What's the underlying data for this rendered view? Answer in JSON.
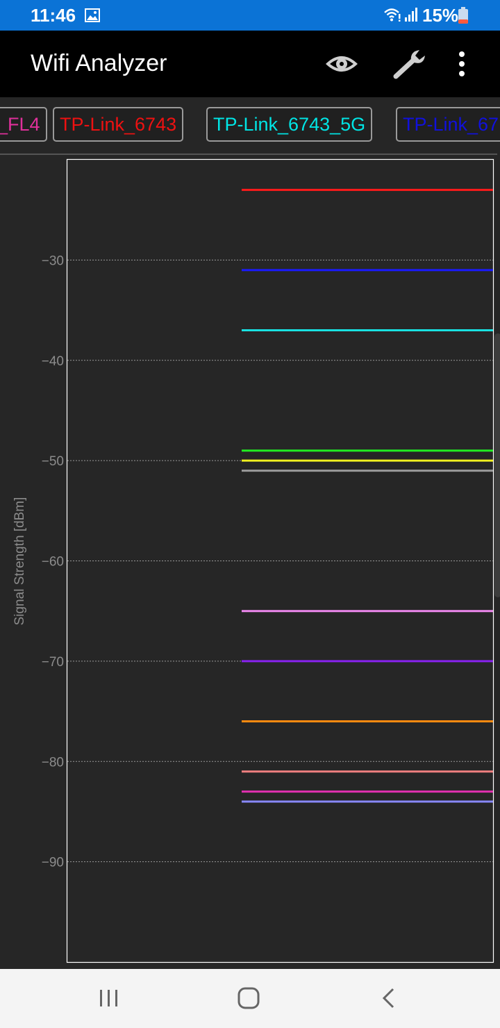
{
  "status_bar": {
    "time": "11:46",
    "battery": "15%",
    "icons": [
      "gallery-icon",
      "wifi-icon",
      "signal-icon",
      "battery-icon"
    ]
  },
  "app_bar": {
    "title": "Wifi Analyzer",
    "icons": [
      "eye-icon",
      "wrench-icon",
      "more-vert-icon"
    ]
  },
  "chips": [
    {
      "label": "_FL4",
      "color": "#e0309b"
    },
    {
      "label": "TP-Link_6743",
      "color": "#ee1111"
    },
    {
      "label": "TP-Link_6743_5G",
      "color": "#00e5e5"
    },
    {
      "label": "TP-Link_67",
      "color": "#1111dd"
    }
  ],
  "chart_data": {
    "type": "line",
    "title": "",
    "ylabel": "Signal Strength [dBm]",
    "xlabel": "",
    "ylim": [
      -100,
      -20
    ],
    "yticks": [
      -30,
      -40,
      -50,
      -60,
      -70,
      -80,
      -90
    ],
    "grid": true,
    "series": [
      {
        "value": -23,
        "color": "#ff1a1a"
      },
      {
        "value": -31,
        "color": "#1a1aff"
      },
      {
        "value": -37,
        "color": "#19e0e0"
      },
      {
        "value": -49,
        "color": "#22ee22"
      },
      {
        "value": -50,
        "color": "#f0f020"
      },
      {
        "value": -51,
        "color": "#9a9a9a"
      },
      {
        "value": -65,
        "color": "#ee88ee"
      },
      {
        "value": -70,
        "color": "#8822ee"
      },
      {
        "value": -76,
        "color": "#ff8a10"
      },
      {
        "value": -81,
        "color": "#f08080"
      },
      {
        "value": -83,
        "color": "#e030b0"
      },
      {
        "value": -84,
        "color": "#8888ff"
      }
    ]
  },
  "nav_bar": {
    "icons": [
      "recents-icon",
      "home-icon",
      "back-icon"
    ]
  }
}
